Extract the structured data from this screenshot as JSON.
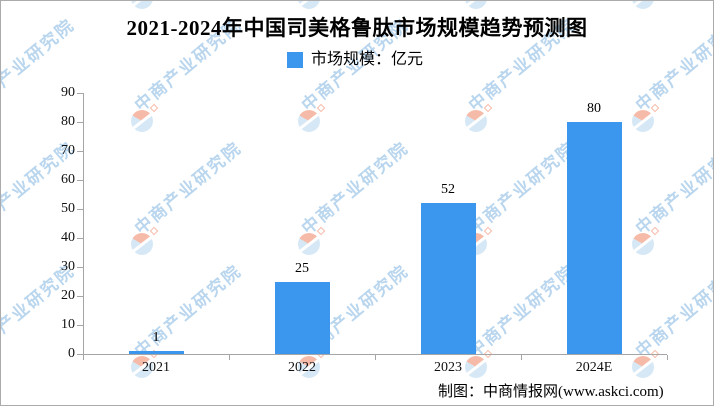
{
  "title": "2021-2024年中国司美格鲁肽市场规模趋势预测图",
  "legend": {
    "label": "市场规模：亿元",
    "color": "#3a97ed"
  },
  "watermark": {
    "text": "中商产业研究院"
  },
  "attribution": "制图：中商情报网(www.askci.com)",
  "chart_data": {
    "type": "bar",
    "title": "2021-2024年中国司美格鲁肽市场规模趋势预测图",
    "categories": [
      "2021",
      "2022",
      "2023",
      "2024E"
    ],
    "values": [
      1,
      25,
      52,
      80
    ],
    "series_name": "市场规模",
    "unit": "亿元",
    "xlabel": "",
    "ylabel": "",
    "ylim": [
      0,
      90
    ],
    "yticks": [
      0,
      10,
      20,
      30,
      40,
      50,
      60,
      70,
      80,
      90
    ],
    "grid": false,
    "legend_position": "top",
    "bar_color": "#3a97ed",
    "value_labels": true
  }
}
